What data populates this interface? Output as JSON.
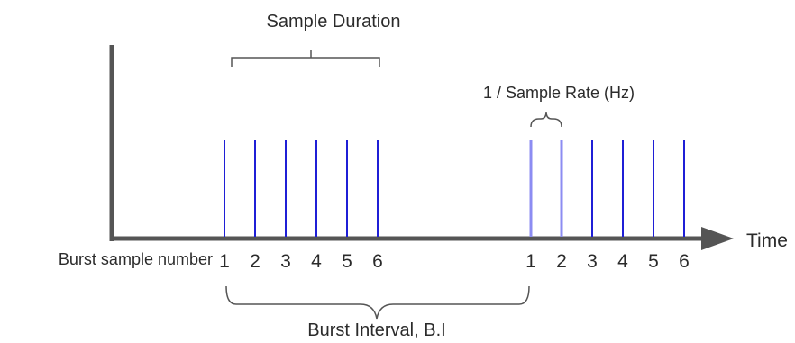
{
  "labels": {
    "sample_duration": "Sample Duration",
    "sample_rate": "1 / Sample Rate (Hz)",
    "time": "Time",
    "burst_sample_number": "Burst sample number",
    "burst_interval": "Burst Interval, B.I"
  },
  "bursts": [
    {
      "samples": [
        "1",
        "2",
        "3",
        "4",
        "5",
        "6"
      ]
    },
    {
      "samples": [
        "1",
        "2",
        "3",
        "4",
        "5",
        "6"
      ]
    }
  ],
  "colors": {
    "pulse": "#1f1fd6",
    "pulse_highlight": "#8c8cf2",
    "axis": "#555555",
    "text": "#2b2b2b"
  }
}
